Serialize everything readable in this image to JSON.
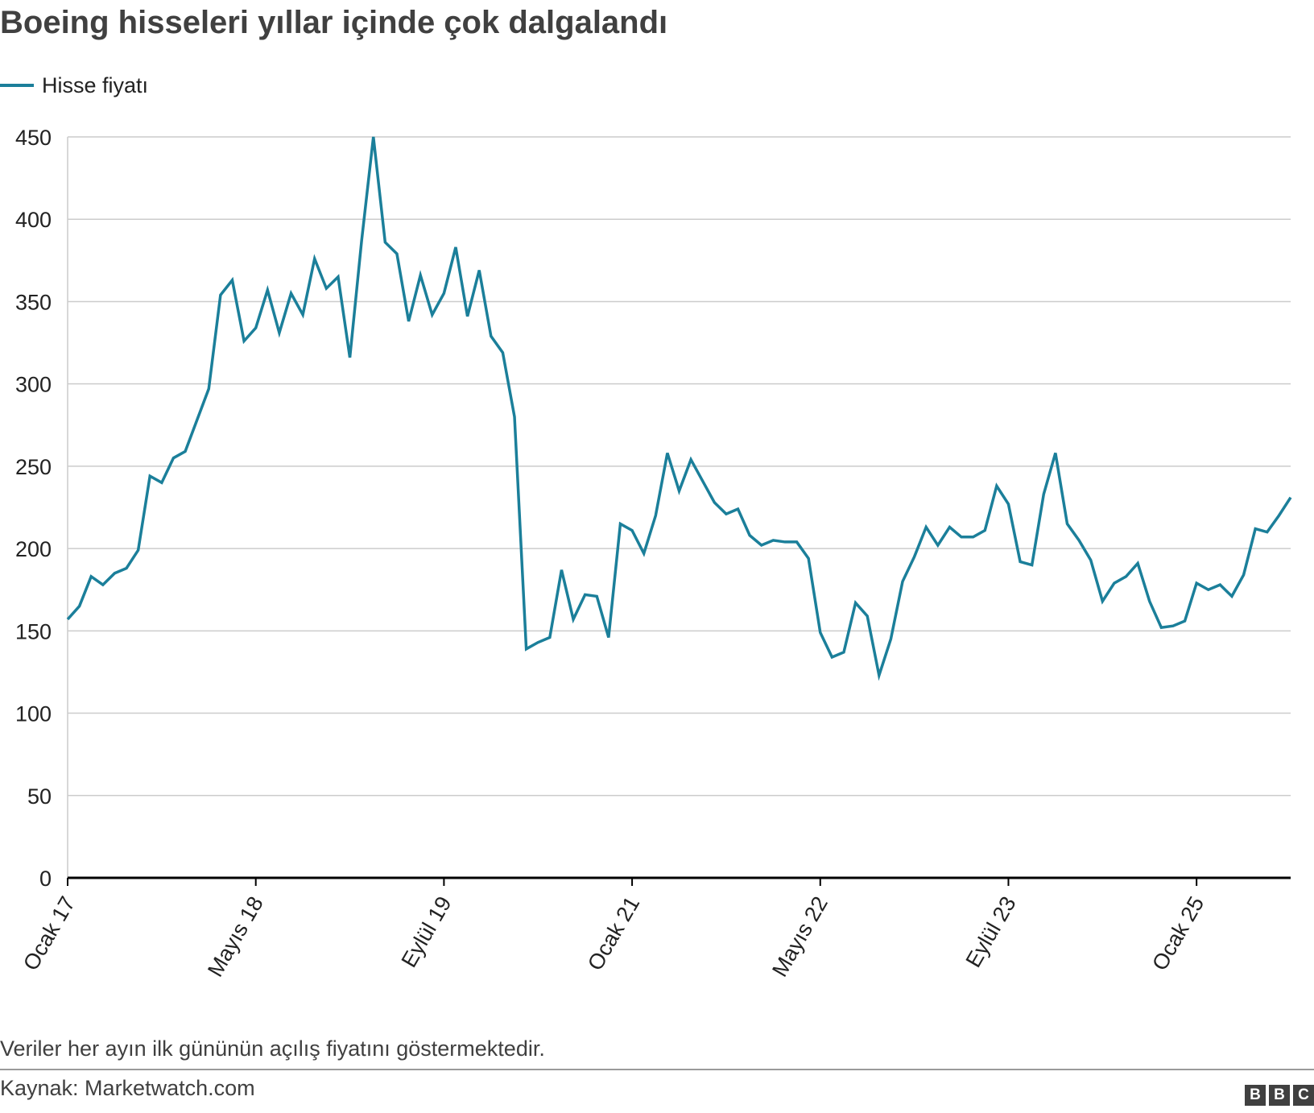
{
  "title": "Boeing hisseleri yıllar içinde çok dalgalandı",
  "note": "Veriler her ayın ilk gününün açılış fiyatını göstermektedir.",
  "source": "Kaynak: Marketwatch.com",
  "logo": [
    "B",
    "B",
    "C"
  ],
  "colors": {
    "line": "#1b7f9a",
    "grid": "#cccccc",
    "baseline": "#000000"
  },
  "chart_data": {
    "type": "line",
    "title": "Boeing hisseleri yıllar içinde çok dalgalandı",
    "xlabel": "",
    "ylabel": "",
    "ylim": [
      0,
      450
    ],
    "yticks": [
      0,
      50,
      100,
      150,
      200,
      250,
      300,
      350,
      400,
      450
    ],
    "xtick_labels": [
      "Ocak 17",
      "Mayıs 18",
      "Eylül 19",
      "Ocak 21",
      "Mayıs 22",
      "Eylül 23",
      "Ocak 25"
    ],
    "x_start": "2017-01",
    "x_step": "1 month",
    "grid": true,
    "legend": "top-left",
    "series": [
      {
        "name": "Hisse fiyatı",
        "color": "#1b7f9a",
        "values": [
          157,
          165,
          183,
          178,
          185,
          188,
          199,
          244,
          240,
          255,
          259,
          278,
          297,
          354,
          363,
          326,
          334,
          357,
          331,
          355,
          342,
          376,
          358,
          365,
          316,
          387,
          450,
          386,
          379,
          338,
          366,
          342,
          355,
          383,
          341,
          369,
          329,
          319,
          280,
          139,
          143,
          146,
          187,
          157,
          172,
          171,
          146,
          215,
          211,
          197,
          220,
          258,
          235,
          254,
          241,
          228,
          221,
          224,
          208,
          202,
          205,
          204,
          204,
          194,
          149,
          134,
          137,
          167,
          159,
          123,
          145,
          180,
          195,
          213,
          202,
          213,
          207,
          207,
          211,
          238,
          227,
          192,
          190,
          233,
          258,
          215,
          205,
          193,
          168,
          179,
          183,
          191,
          168,
          152,
          153,
          156,
          179,
          175,
          178,
          171,
          184,
          212,
          210,
          220,
          231
        ]
      }
    ]
  }
}
